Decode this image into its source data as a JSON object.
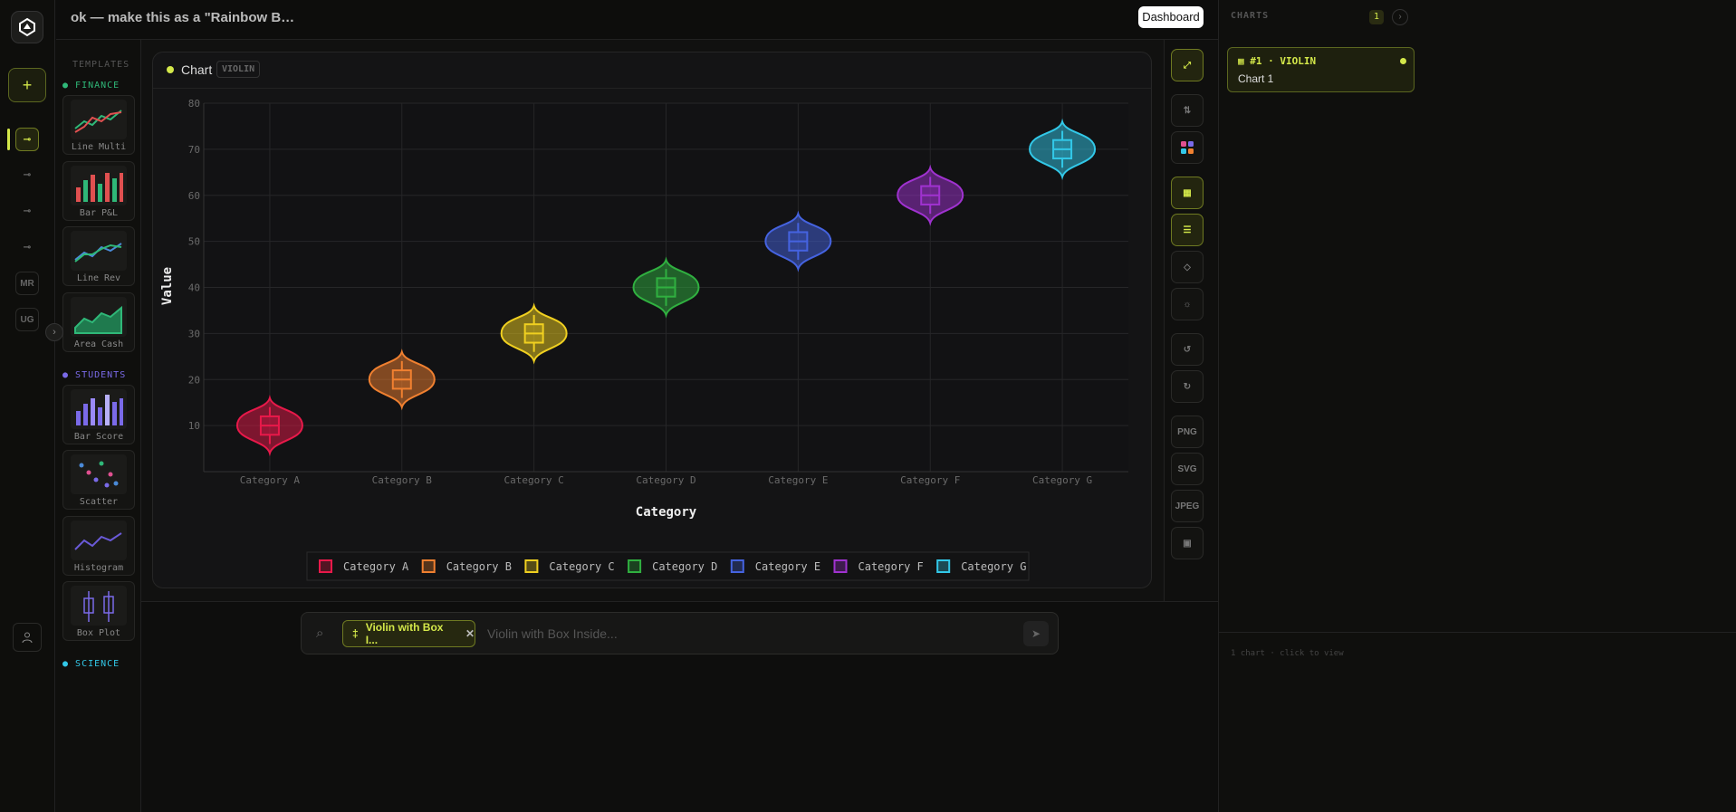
{
  "header": {
    "prompt": "ok — make this as a \"Rainbow B…",
    "dashboard": "Dashboard"
  },
  "rail": {
    "items": [
      "MR",
      "UG"
    ]
  },
  "templates": {
    "title": "TEMPLATES",
    "finance": {
      "name": "FINANCE",
      "items": [
        "Line Multi",
        "Bar P&L",
        "Line Rev",
        "Area Cash"
      ]
    },
    "students": {
      "name": "STUDENTS",
      "items": [
        "Bar Score",
        "Scatter",
        "Histogram",
        "Box Plot"
      ]
    },
    "science": {
      "name": "SCIENCE"
    }
  },
  "panel": {
    "title": "Chart",
    "badge": "VIOLIN"
  },
  "toolbar": {
    "exports": [
      "PNG",
      "SVG",
      "JPEG"
    ]
  },
  "charts_panel": {
    "title": "CHARTS",
    "count": 1,
    "card_label": "#1 · VIOLIN",
    "card_name": "Chart 1",
    "footer": "1 chart · click to view"
  },
  "composer": {
    "chip": "Violin with Box I...",
    "placeholder": "Violin with Box Inside..."
  },
  "chart_data": {
    "type": "violin",
    "x_label": "Category",
    "y_label": "Value",
    "categories": [
      "Category A",
      "Category B",
      "Category C",
      "Category D",
      "Category E",
      "Category F",
      "Category G"
    ],
    "ylim": [
      0,
      80
    ],
    "yticks": [
      10,
      20,
      30,
      40,
      50,
      60,
      70,
      80
    ],
    "grid": true,
    "series": [
      {
        "name": "Category A",
        "color": "#e8194a",
        "min": 4,
        "whisker_low": 6,
        "q1": 8,
        "median": 10,
        "q3": 12,
        "whisker_high": 14,
        "max": 16
      },
      {
        "name": "Category B",
        "color": "#f08030",
        "min": 14,
        "whisker_low": 16,
        "q1": 18,
        "median": 20,
        "q3": 22,
        "whisker_high": 24,
        "max": 26
      },
      {
        "name": "Category C",
        "color": "#f0d020",
        "min": 24,
        "whisker_low": 26,
        "q1": 28,
        "median": 30,
        "q3": 32,
        "whisker_high": 34,
        "max": 36
      },
      {
        "name": "Category D",
        "color": "#30b040",
        "min": 34,
        "whisker_low": 36,
        "q1": 38,
        "median": 40,
        "q3": 42,
        "whisker_high": 44,
        "max": 46
      },
      {
        "name": "Category E",
        "color": "#4563e0",
        "min": 44,
        "whisker_low": 46,
        "q1": 48,
        "median": 50,
        "q3": 52,
        "whisker_high": 54,
        "max": 56
      },
      {
        "name": "Category F",
        "color": "#a032d0",
        "min": 54,
        "whisker_low": 56,
        "q1": 58,
        "median": 60,
        "q3": 62,
        "whisker_high": 64,
        "max": 66
      },
      {
        "name": "Category G",
        "color": "#32c8e8",
        "min": 64,
        "whisker_low": 66,
        "q1": 68,
        "median": 70,
        "q3": 72,
        "whisker_high": 74,
        "max": 76
      }
    ]
  }
}
